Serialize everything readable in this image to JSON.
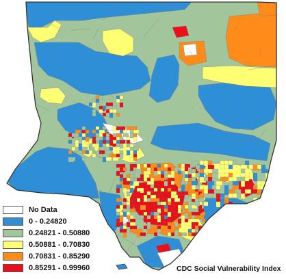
{
  "map": {
    "title": "CDC Social Vulnerability Index",
    "colors": {
      "outline": "#333333",
      "tract_line": "#7a7a7a",
      "background": "#ffffff"
    }
  },
  "legend": {
    "items": [
      {
        "label": "No Data",
        "color": "#ffffff"
      },
      {
        "label": "0 - 0.24820",
        "color": "#2f8fd6"
      },
      {
        "label": "0.24821 - 0.50880",
        "color": "#a2c59c"
      },
      {
        "label": "0.50881 - 0.70830",
        "color": "#ffff73"
      },
      {
        "label": "0.70831 - 0.85290",
        "color": "#ff8c1a"
      },
      {
        "label": "0.85291 - 0.99960",
        "color": "#e8101a"
      }
    ]
  }
}
